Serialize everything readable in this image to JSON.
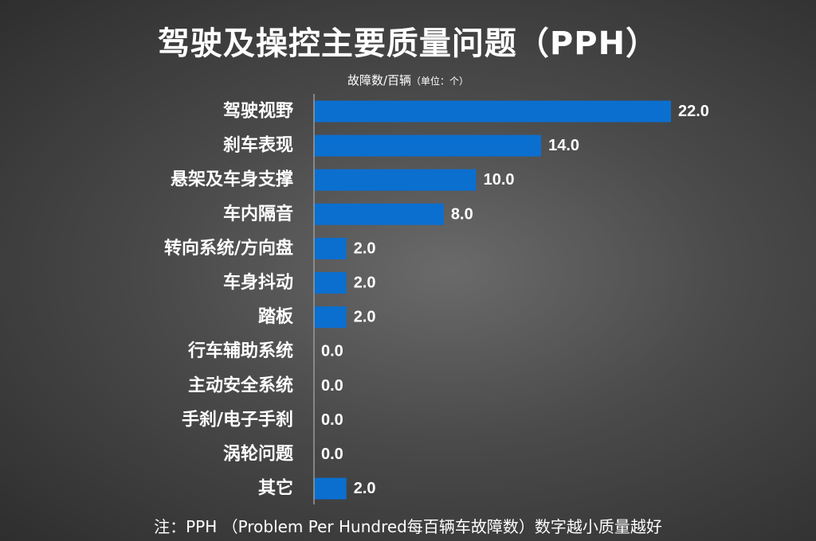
{
  "title": "驾驶及操控主要质量问题（PPH）",
  "subtitle": "故障数/百辆",
  "subtitle_unit": "（单位：个）",
  "footnote": "注：PPH （Problem Per Hundred每百辆车故障数）数字越小质量越好",
  "colors": {
    "bar": "#0b6fd0",
    "axis": "#9a9a9a",
    "text": "#ffffff"
  },
  "chart_data": {
    "type": "bar",
    "orientation": "horizontal",
    "categories": [
      "驾驶视野",
      "刹车表现",
      "悬架及车身支撑",
      "车内隔音",
      "转向系统/方向盘",
      "车身抖动",
      "踏板",
      "行车辅助系统",
      "主动安全系统",
      "手刹/电子手刹",
      "涡轮问题",
      "其它"
    ],
    "values": [
      22.0,
      14.0,
      10.0,
      8.0,
      2.0,
      2.0,
      2.0,
      0.0,
      0.0,
      0.0,
      0.0,
      2.0
    ],
    "value_labels": [
      "22.0",
      "14.0",
      "10.0",
      "8.0",
      "2.0",
      "2.0",
      "2.0",
      "0.0",
      "0.0",
      "0.0",
      "0.0",
      "2.0"
    ],
    "xlim": [
      0,
      22
    ],
    "grid": false,
    "legend": "none"
  }
}
